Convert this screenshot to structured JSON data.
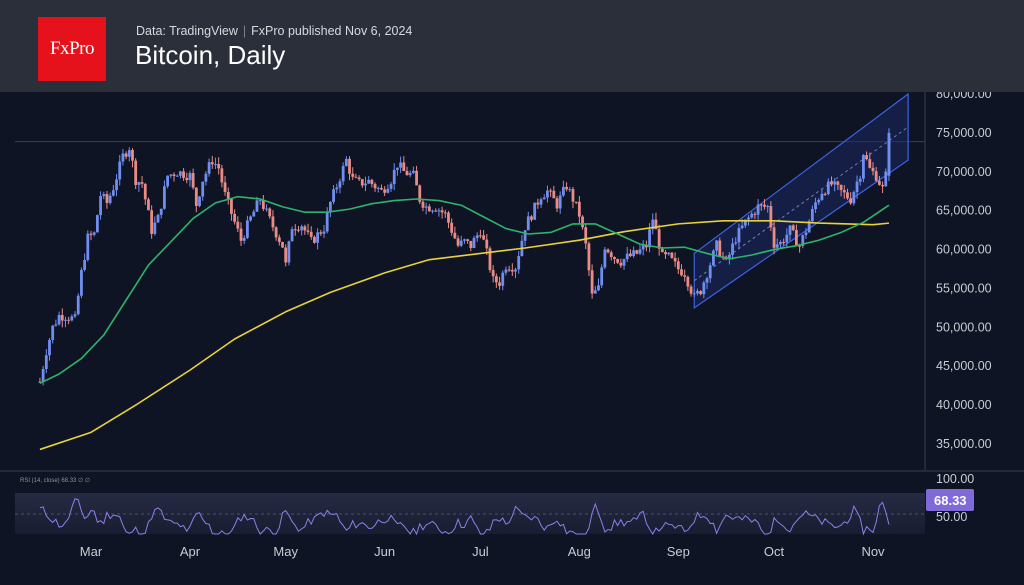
{
  "header": {
    "logo_text": "FxPro",
    "source": "Data: TradingView",
    "publisher": "FxPro published Nov 6, 2024",
    "title": "Bitcoin, Daily"
  },
  "colors": {
    "background": "#0f1424",
    "header": "#2b2f39",
    "up_candle": "#6f8ef0",
    "down_candle": "#e88c86",
    "ma_fast": "#2fb36a",
    "ma_slow": "#e8d23a",
    "channel": "#3b63e0",
    "rsi_line": "#8f7ee8",
    "rsi_badge": "#7e6bd8"
  },
  "chart_data": {
    "type": "candlestick",
    "title": "Bitcoin, Daily",
    "y_axis": {
      "ticks": [
        "80,000.00",
        "75,000.00",
        "70,000.00",
        "65,000.00",
        "60,000.00",
        "55,000.00",
        "50,000.00",
        "45,000.00",
        "40,000.00",
        "35,000.00"
      ],
      "range": [
        33000,
        81000
      ]
    },
    "x_axis": {
      "months": [
        "Mar",
        "Apr",
        "May",
        "Jun",
        "Jul",
        "Aug",
        "Sep",
        "Oct",
        "Nov"
      ]
    },
    "close_path": [
      [
        "Feb 14",
        43000
      ],
      [
        "Feb 16",
        47000
      ],
      [
        "Feb 18",
        50000
      ],
      [
        "Feb 20",
        51500
      ],
      [
        "Feb 22",
        51500
      ],
      [
        "Feb 25",
        51000
      ],
      [
        "Feb 27",
        57000
      ],
      [
        "Feb 29",
        61500
      ],
      [
        "Mar 2",
        62000
      ],
      [
        "Mar 4",
        67000
      ],
      [
        "Mar 6",
        66000
      ],
      [
        "Mar 8",
        68000
      ],
      [
        "Mar 11",
        72000
      ],
      [
        "Mar 13",
        73200
      ],
      [
        "Mar 15",
        69000
      ],
      [
        "Mar 17",
        68500
      ],
      [
        "Mar 20",
        62500
      ],
      [
        "Mar 22",
        64000
      ],
      [
        "Mar 25",
        69500
      ],
      [
        "Mar 28",
        70000
      ],
      [
        "Apr 1",
        69500
      ],
      [
        "Apr 3",
        65800
      ],
      [
        "Apr 5",
        69000
      ],
      [
        "Apr 8",
        71500
      ],
      [
        "Apr 10",
        70500
      ],
      [
        "Apr 12",
        67000
      ],
      [
        "Apr 15",
        63500
      ],
      [
        "Apr 17",
        61200
      ],
      [
        "Apr 20",
        64000
      ],
      [
        "Apr 23",
        66500
      ],
      [
        "Apr 26",
        63800
      ],
      [
        "Apr 30",
        60500
      ],
      [
        "May 1",
        58000
      ],
      [
        "May 3",
        63000
      ],
      [
        "May 6",
        63200
      ],
      [
        "May 9",
        61000
      ],
      [
        "May 13",
        62800
      ],
      [
        "May 15",
        66000
      ],
      [
        "May 20",
        71500
      ],
      [
        "May 22",
        69000
      ],
      [
        "May 24",
        68500
      ],
      [
        "May 27",
        68800
      ],
      [
        "May 31",
        67500
      ],
      [
        "Jun 3",
        69000
      ],
      [
        "Jun 5",
        71000
      ],
      [
        "Jun 7",
        70000
      ],
      [
        "Jun 10",
        69500
      ],
      [
        "Jun 12",
        66500
      ],
      [
        "Jun 14",
        65500
      ],
      [
        "Jun 17",
        65500
      ],
      [
        "Jun 20",
        64500
      ],
      [
        "Jun 24",
        60500
      ],
      [
        "Jun 26",
        61000
      ],
      [
        "Jun 28",
        60500
      ],
      [
        "Jul 1",
        62500
      ],
      [
        "Jul 3",
        59500
      ],
      [
        "Jul 5",
        56000
      ],
      [
        "Jul 7",
        55800
      ],
      [
        "Jul 9",
        58000
      ],
      [
        "Jul 12",
        57800
      ],
      [
        "Jul 15",
        63000
      ],
      [
        "Jul 17",
        64500
      ],
      [
        "Jul 20",
        67000
      ],
      [
        "Jul 22",
        67500
      ],
      [
        "Jul 25",
        65800
      ],
      [
        "Jul 28",
        68200
      ],
      [
        "Jul 30",
        66500
      ],
      [
        "Aug 1",
        64500
      ],
      [
        "Aug 3",
        60500
      ],
      [
        "Aug 5",
        54000
      ],
      [
        "Aug 7",
        55000
      ],
      [
        "Aug 9",
        60500
      ],
      [
        "Aug 12",
        59000
      ],
      [
        "Aug 14",
        58500
      ],
      [
        "Aug 16",
        59000
      ],
      [
        "Aug 19",
        59500
      ],
      [
        "Aug 22",
        60500
      ],
      [
        "Aug 24",
        64000
      ],
      [
        "Aug 27",
        59000
      ],
      [
        "Aug 29",
        59000
      ],
      [
        "Sep 1",
        57500
      ],
      [
        "Sep 3",
        57000
      ],
      [
        "Sep 6",
        53800
      ],
      [
        "Sep 8",
        54800
      ],
      [
        "Sep 10",
        57000
      ],
      [
        "Sep 13",
        60500
      ],
      [
        "Sep 16",
        58200
      ],
      [
        "Sep 19",
        61500
      ],
      [
        "Sep 22",
        63500
      ],
      [
        "Sep 26",
        65500
      ],
      [
        "Sep 29",
        65500
      ],
      [
        "Oct 1",
        60800
      ],
      [
        "Oct 3",
        60800
      ],
      [
        "Oct 6",
        62500
      ],
      [
        "Oct 9",
        60500
      ],
      [
        "Oct 11",
        62500
      ],
      [
        "Oct 14",
        66000
      ],
      [
        "Oct 16",
        67500
      ],
      [
        "Oct 19",
        68400
      ],
      [
        "Oct 22",
        67400
      ],
      [
        "Oct 25",
        66500
      ],
      [
        "Oct 28",
        69800
      ],
      [
        "Oct 29",
        72500
      ],
      [
        "Oct 31",
        70300
      ],
      [
        "Nov 2",
        69500
      ],
      [
        "Nov 4",
        67800
      ],
      [
        "Nov 5",
        69500
      ],
      [
        "Nov 6",
        75000
      ]
    ],
    "ma_fast_path": [
      [
        "Feb 14",
        42800
      ],
      [
        "Feb 20",
        44000
      ],
      [
        "Feb 27",
        46000
      ],
      [
        "Mar 5",
        49000
      ],
      [
        "Mar 12",
        53500
      ],
      [
        "Mar 19",
        58000
      ],
      [
        "Mar 26",
        61000
      ],
      [
        "Apr 2",
        64000
      ],
      [
        "Apr 9",
        66000
      ],
      [
        "Apr 16",
        66800
      ],
      [
        "Apr 23",
        66500
      ],
      [
        "Apr 30",
        65500
      ],
      [
        "May 7",
        64800
      ],
      [
        "May 14",
        64800
      ],
      [
        "May 21",
        65200
      ],
      [
        "May 28",
        65900
      ],
      [
        "Jun 4",
        66300
      ],
      [
        "Jun 11",
        66500
      ],
      [
        "Jun 18",
        66300
      ],
      [
        "Jun 25",
        65700
      ],
      [
        "Jul 2",
        64200
      ],
      [
        "Jul 9",
        62700
      ],
      [
        "Jul 16",
        62000
      ],
      [
        "Jul 23",
        62200
      ],
      [
        "Jul 30",
        63300
      ],
      [
        "Aug 6",
        63300
      ],
      [
        "Aug 13",
        62000
      ],
      [
        "Aug 20",
        60700
      ],
      [
        "Aug 27",
        60200
      ],
      [
        "Sep 3",
        60300
      ],
      [
        "Sep 10",
        59500
      ],
      [
        "Sep 17",
        58800
      ],
      [
        "Sep 24",
        59300
      ],
      [
        "Oct 1",
        60000
      ],
      [
        "Oct 8",
        60500
      ],
      [
        "Oct 15",
        61200
      ],
      [
        "Oct 22",
        62200
      ],
      [
        "Oct 29",
        63500
      ],
      [
        "Nov 6",
        65700
      ]
    ],
    "ma_slow_path": [
      [
        "Feb 14",
        34300
      ],
      [
        "Mar 1",
        36500
      ],
      [
        "Mar 15",
        40000
      ],
      [
        "Apr 1",
        44500
      ],
      [
        "Apr 15",
        48500
      ],
      [
        "May 1",
        52000
      ],
      [
        "May 15",
        54500
      ],
      [
        "Jun 1",
        57000
      ],
      [
        "Jun 15",
        58700
      ],
      [
        "Jul 1",
        59500
      ],
      [
        "Jul 15",
        60200
      ],
      [
        "Aug 1",
        61200
      ],
      [
        "Aug 15",
        62300
      ],
      [
        "Sep 1",
        63300
      ],
      [
        "Sep 15",
        63700
      ],
      [
        "Oct 1",
        63700
      ],
      [
        "Oct 15",
        63400
      ],
      [
        "Nov 1",
        63200
      ],
      [
        "Nov 6",
        63400
      ]
    ],
    "channel": {
      "upper": [
        [
          "Sep 6",
          59500
        ],
        [
          "Nov 12",
          80000
        ]
      ],
      "lower": [
        [
          "Sep 6",
          52500
        ],
        [
          "Nov 12",
          71500
        ]
      ]
    },
    "annotations": {
      "highlight_level": 74000
    }
  },
  "rsi": {
    "label": "RSI (14, close) 68.33 ∅ ∅",
    "value": "68.33",
    "ticks": [
      "100.00",
      "50.00"
    ]
  }
}
